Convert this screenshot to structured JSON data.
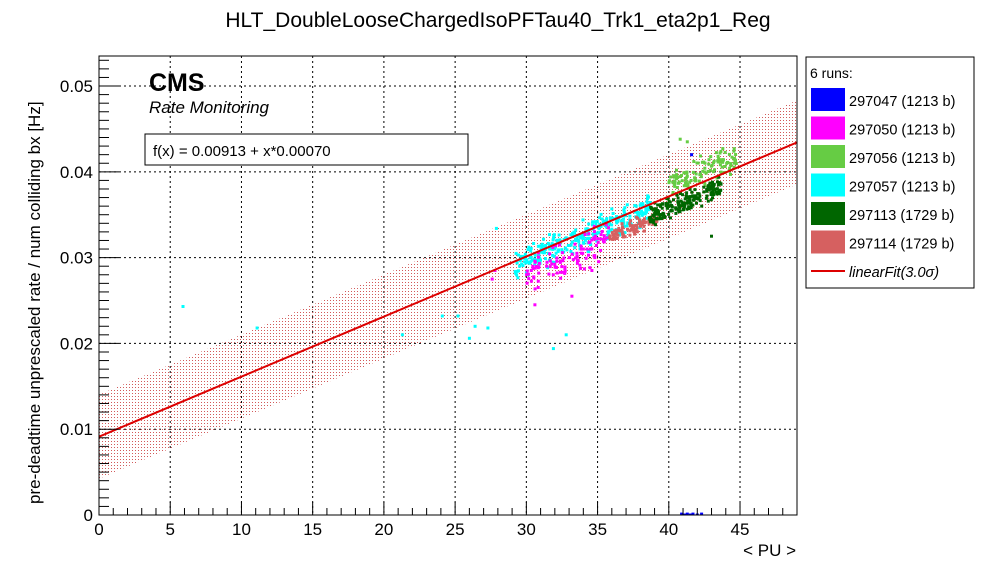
{
  "chart_data": {
    "type": "scatter",
    "title": "HLT_DoubleLooseChargedIsoPFTau40_Trk1_eta2p1_Reg",
    "xlabel": "< PU >",
    "ylabel": "pre-deadtime unprescaled rate / num colliding bx [Hz]",
    "xlim": [
      0,
      49
    ],
    "ylim": [
      0,
      0.0535
    ],
    "x_ticks": [
      0,
      5,
      10,
      15,
      20,
      25,
      30,
      35,
      40,
      45
    ],
    "y_ticks": [
      0,
      0.01,
      0.02,
      0.03,
      0.04,
      0.05
    ],
    "x_tick_labels": [
      "0",
      "5",
      "10",
      "15",
      "20",
      "25",
      "30",
      "35",
      "40",
      "45"
    ],
    "y_tick_labels": [
      "0",
      "0.01",
      "0.02",
      "0.03",
      "0.04",
      "0.05"
    ],
    "grid": true,
    "legend_position": "right",
    "experiment_label": "CMS",
    "subtitle": "Rate Monitoring",
    "fit_label": "f(x) = 0.00913 + x*0.00070",
    "legend_header": "6 runs:",
    "fit": {
      "name": "linearFit",
      "legend_label": "linearFit(3.0σ)",
      "intercept": 0.00913,
      "slope": 0.0007,
      "band_halfwidth": 0.0049,
      "x_range": [
        0,
        49
      ],
      "color": "#dd0000"
    },
    "series": [
      {
        "name": "297047 (1213 b)",
        "color": "#0000ff",
        "clusters": [],
        "points": [
          [
            40.9,
            0.0001
          ],
          [
            41.1,
            0.0
          ],
          [
            41.3,
            0.0001
          ],
          [
            41.5,
            0.0
          ],
          [
            41.7,
            0.0001
          ],
          [
            42.0,
            0.0
          ],
          [
            42.3,
            0.0001
          ],
          [
            41.6,
            0.042
          ]
        ]
      },
      {
        "name": "297050 (1213 b)",
        "color": "#ff00ff",
        "clusters": [
          {
            "x_range": [
              29.8,
              35.8
            ],
            "y_center": 0.03,
            "y_spread": 0.0028,
            "slope": 0.0007,
            "count": 110
          }
        ],
        "points": [
          [
            27.6,
            0.0275
          ],
          [
            27.8,
            0.0285
          ],
          [
            33.2,
            0.0255
          ],
          [
            34.6,
            0.0285
          ],
          [
            30.6,
            0.0245
          ]
        ]
      },
      {
        "name": "297056 (1213 b)",
        "color": "#66cc44",
        "clusters": [
          {
            "x_range": [
              40.0,
              44.8
            ],
            "y_center": 0.04,
            "y_spread": 0.0022,
            "slope": 0.0007,
            "count": 120
          }
        ],
        "points": [
          [
            40.8,
            0.0438
          ],
          [
            41.3,
            0.0435
          ]
        ]
      },
      {
        "name": "297057 (1213 b)",
        "color": "#00ffff",
        "clusters": [
          {
            "x_range": [
              29.2,
              38.8
            ],
            "y_center": 0.0325,
            "y_spread": 0.0023,
            "slope": 0.0007,
            "count": 300
          }
        ],
        "points": [
          [
            5.9,
            0.0243
          ],
          [
            11.1,
            0.0218
          ],
          [
            21.3,
            0.021
          ],
          [
            24.1,
            0.0232
          ],
          [
            26.0,
            0.0206
          ],
          [
            26.4,
            0.022
          ],
          [
            27.3,
            0.0218
          ],
          [
            27.9,
            0.0334
          ],
          [
            31.9,
            0.0194
          ],
          [
            32.8,
            0.021
          ],
          [
            25.2,
            0.0232
          ]
        ]
      },
      {
        "name": "297113 (1729 b)",
        "color": "#006600",
        "clusters": [
          {
            "x_range": [
              38.6,
              43.8
            ],
            "y_center": 0.0365,
            "y_spread": 0.0018,
            "slope": 0.0007,
            "count": 200
          }
        ],
        "points": [
          [
            43.0,
            0.0325
          ],
          [
            39.7,
            0.0347
          ]
        ]
      },
      {
        "name": "297114 (1729 b)",
        "color": "#d66060",
        "clusters": [
          {
            "x_range": [
              35.8,
              39.2
            ],
            "y_center": 0.0335,
            "y_spread": 0.0013,
            "slope": 0.0007,
            "count": 90
          }
        ],
        "points": []
      }
    ]
  }
}
